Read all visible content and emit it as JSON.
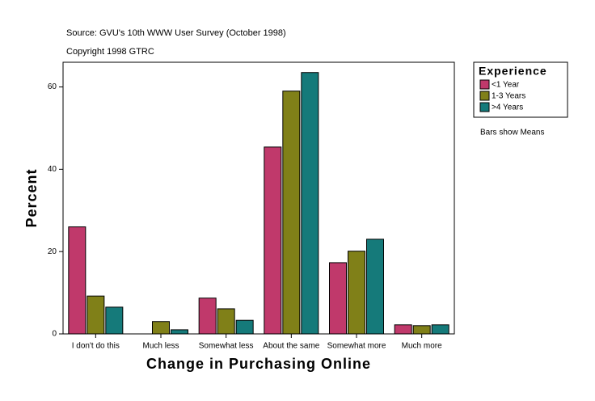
{
  "chart_data": {
    "type": "bar",
    "title": "Source: GVU's 10th WWW User Survey (October 1998)",
    "subtitle": "Copyright 1998 GTRC",
    "x_label": "Change in Purchasing Online",
    "y_label": "Percent",
    "categories": [
      "I don't do this",
      "Much less",
      "Somewhat less",
      "About the same",
      "Somewhat more",
      "Much more"
    ],
    "series": [
      {
        "name": "<1 Year",
        "color": "#c0396b",
        "values": [
          26.0,
          null,
          8.7,
          45.4,
          17.3,
          2.2
        ]
      },
      {
        "name": "1-3 Years",
        "color": "#808018",
        "values": [
          9.2,
          3.0,
          6.1,
          59.0,
          20.1,
          2.0
        ]
      },
      {
        "name": ">4 Years",
        "color": "#157a7a",
        "values": [
          6.5,
          1.0,
          3.3,
          63.5,
          23.0,
          2.2
        ]
      }
    ],
    "legend_title": "Experience",
    "legend_position": "right",
    "note": "Bars show Means",
    "ylim": [
      0,
      66
    ],
    "yticks": [
      0,
      20,
      40,
      60
    ]
  }
}
